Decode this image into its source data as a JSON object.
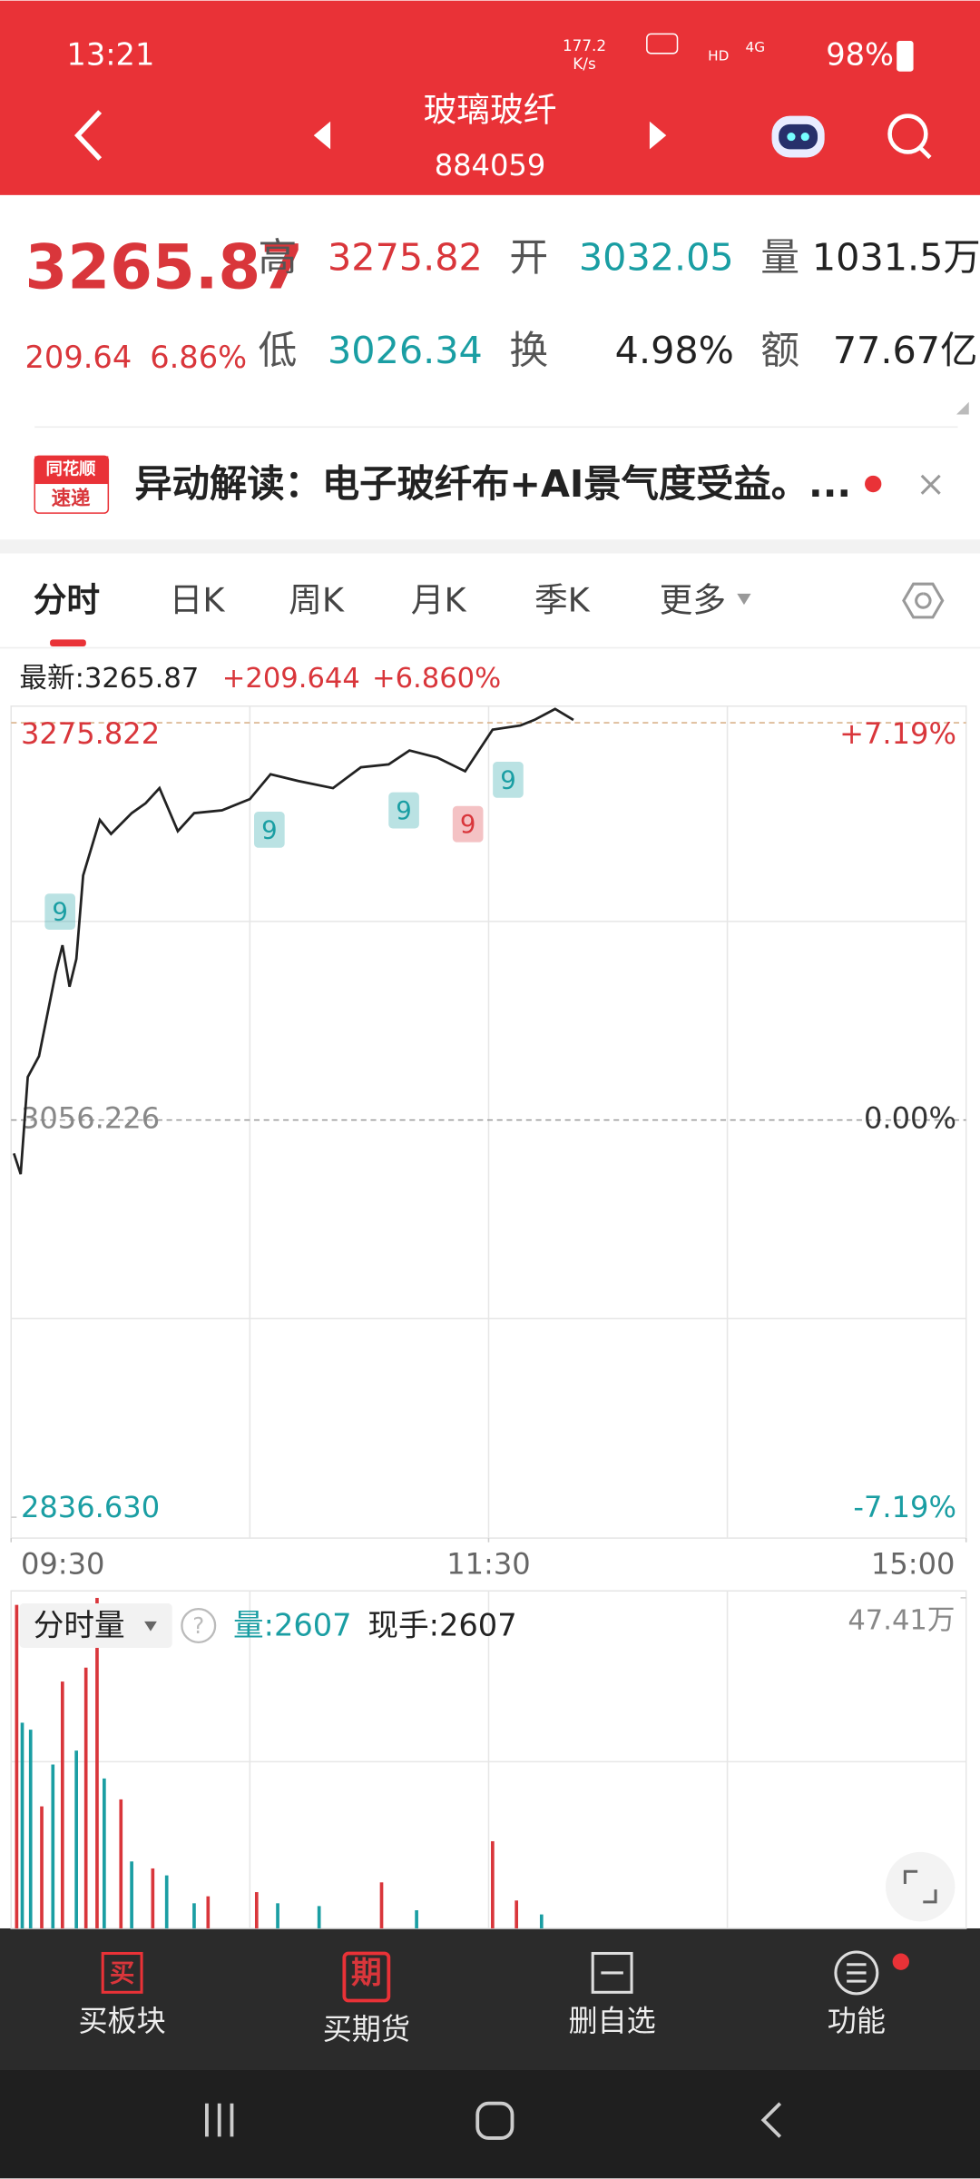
{
  "status_bar": {
    "time": "13:21",
    "net_speed_value": "177.2",
    "net_speed_unit": "K/s",
    "hd": "HD",
    "network": "4G",
    "battery": "98%"
  },
  "header": {
    "title": "玻璃玻纤",
    "code": "884059"
  },
  "quote": {
    "price": "3265.87",
    "change": "209.64",
    "change_pct": "6.86%",
    "fields": [
      {
        "label": "高",
        "value": "3275.82"
      },
      {
        "label": "开",
        "value": "3032.05"
      },
      {
        "label": "量",
        "value": "1031.5万"
      },
      {
        "label": "低",
        "value": "3026.34"
      },
      {
        "label": "换",
        "value": "4.98%"
      },
      {
        "label": "额",
        "value": "77.67亿"
      }
    ]
  },
  "news": {
    "badge_top": "同花顺",
    "badge_bottom": "速递",
    "text": "异动解读：电子玻纤布+AI景气度受益。..."
  },
  "tabs": [
    "分时",
    "日K",
    "周K",
    "月K",
    "季K",
    "更多"
  ],
  "chart_info": {
    "latest": "最新:3265.87",
    "change": "+209.644",
    "change_pct": "+6.860%"
  },
  "chart_data": [
    {
      "type": "line",
      "color": "#222222",
      "x": [
        0.7,
        2.4,
        4.2,
        7.0,
        11.2,
        12.9,
        14.7,
        16.4,
        18.1,
        22.3,
        25.1,
        30.3,
        33.8,
        37.3,
        41.9,
        46.0,
        53.0,
        60.0,
        65.2,
        72.2,
        80.9,
        87.9,
        94.9,
        100.1,
        107.1,
        114.1,
        121.0,
        128.0,
        131.5,
        136.7,
        141.3
      ],
      "values": [
        3037.8,
        3026.3,
        3080.0,
        3091.5,
        3137.6,
        3152.9,
        3129.9,
        3145.3,
        3191.4,
        3222.1,
        3214.4,
        3225.9,
        3231.3,
        3239.7,
        3215.9,
        3225.9,
        3227.4,
        3233.6,
        3247.4,
        3243.6,
        3239.7,
        3251.2,
        3252.8,
        3260.5,
        3256.6,
        3249.0,
        3272.0,
        3274.3,
        3277.4,
        3283.5,
        3277.4
      ],
      "xlim": [
        0,
        240
      ],
      "xticks": [
        {
          "value": 0,
          "label": "09:30"
        },
        {
          "value": 120,
          "label": "11:30"
        },
        {
          "value": 240,
          "label": "15:00"
        }
      ],
      "ylim": [
        2825.1,
        3285.0
      ],
      "yticks": [
        3275.822,
        3056.226,
        {
          "value": 2836.63,
          "label": "2836.630"
        }
      ],
      "right_labels": [
        "+7.19%",
        "0.00%",
        "-7.19%"
      ],
      "tick_colors": [
        "#d9363b",
        "#888888",
        "#1a9ea3"
      ],
      "right_label_colors": [
        "#d9363b",
        "#333333",
        "#1a9ea3"
      ],
      "annotations": [
        {
          "label": "9",
          "x": 12.3,
          "y": 3171.4,
          "color": "#1a9ea3"
        },
        {
          "label": "9",
          "x": 64.9,
          "y": 3216.7,
          "color": "#1a9ea3"
        },
        {
          "label": "9",
          "x": 98.7,
          "y": 3227.4,
          "color": "#1a9ea3"
        },
        {
          "label": "9",
          "x": 114.8,
          "y": 3219.8,
          "color": "#d9363b"
        },
        {
          "label": "9",
          "x": 124.9,
          "y": 3244.3,
          "color": "#1a9ea3"
        }
      ]
    },
    {
      "type": "bar",
      "selector": "分时量",
      "help": "?",
      "volume": "量:2607",
      "hand": "现手:2607",
      "xlim": [
        0,
        240
      ],
      "ylim": [
        0,
        47.41
      ],
      "yticks": [
        {
          "value": 47.41,
          "label": "47.41万"
        }
      ],
      "series": [
        {
          "color": "#d9363b",
          "x": [
            1.4,
            7.7,
            12.9,
            18.8,
            21.6,
            27.6,
            35.6,
            49.5,
            61.7,
            93.1,
            121.0,
            127.0
          ],
          "values": [
            46.4,
            17.5,
            35.4,
            37.4,
            47.4,
            18.5,
            8.6,
            4.6,
            5.2,
            6.6,
            12.5,
            4.0
          ]
        },
        {
          "color": "#1a9ea3",
          "x": [
            2.8,
            4.9,
            10.5,
            16.4,
            23.4,
            30.3,
            39.1,
            46.0,
            67.0,
            77.4,
            101.9,
            133.3
          ],
          "values": [
            29.5,
            28.5,
            23.5,
            25.5,
            21.5,
            9.6,
            7.6,
            3.6,
            3.6,
            3.2,
            2.6,
            2.0
          ]
        }
      ]
    }
  ],
  "bottom_bar": [
    {
      "icon": "买",
      "label": "买板块"
    },
    {
      "icon": "期",
      "label": "买期货"
    },
    {
      "label": "删自选"
    },
    {
      "label": "功能"
    }
  ]
}
